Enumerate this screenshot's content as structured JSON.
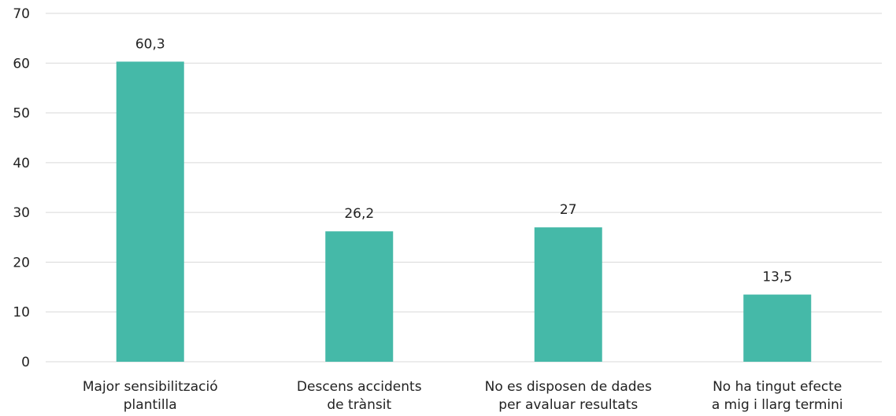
{
  "chart_data": {
    "type": "bar",
    "categories": [
      [
        "Major sensibilització",
        "plantilla"
      ],
      [
        "Descens accidents",
        "de trànsit"
      ],
      [
        "No es disposen de dades",
        "per avaluar resultats"
      ],
      [
        "No ha tingut efecte",
        "a mig i llarg termini"
      ]
    ],
    "values": [
      60.3,
      26.2,
      27,
      13.5
    ],
    "data_labels": [
      "60,3",
      "26,2",
      "27",
      "13,5"
    ],
    "yticks": [
      0,
      10,
      20,
      30,
      40,
      50,
      60,
      70
    ],
    "ylim": [
      0,
      70
    ],
    "grid": true,
    "bar_color": "#45b9a8",
    "title": "",
    "xlabel": "",
    "ylabel": ""
  }
}
